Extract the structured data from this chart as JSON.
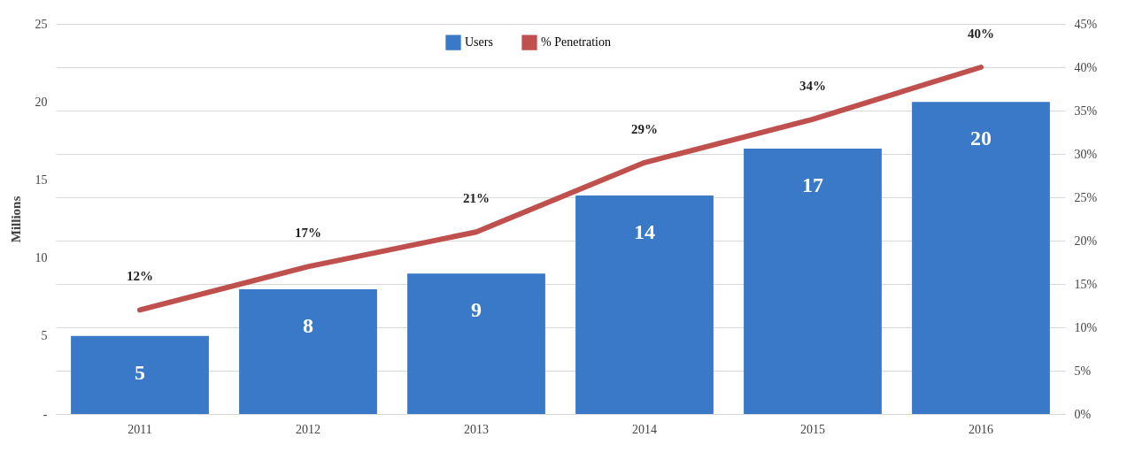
{
  "chart_data": {
    "type": "bar",
    "categories": [
      "2011",
      "2012",
      "2013",
      "2014",
      "2015",
      "2016"
    ],
    "series": [
      {
        "name": "Users",
        "color": "#3a78c8",
        "values": [
          5,
          8,
          9,
          14,
          17,
          20
        ],
        "value_labels": [
          "5",
          "8",
          "9",
          "14",
          "17",
          "20"
        ]
      },
      {
        "name": "% Penetration",
        "type": "line",
        "axis": "y2",
        "color": "#c0504d",
        "values": [
          12,
          17,
          21,
          29,
          34,
          40
        ],
        "value_labels": [
          "12%",
          "17%",
          "21%",
          "29%",
          "34%",
          "40%"
        ]
      }
    ],
    "ylabel": "Millions",
    "ylim": [
      0,
      25
    ],
    "yticks": [
      {
        "value": 0,
        "label": "-"
      },
      5,
      10,
      15,
      20,
      25
    ],
    "y2lim": [
      0,
      45
    ],
    "y2ticks": [
      {
        "value": 0,
        "label": "0%"
      },
      {
        "value": 5,
        "label": "5%"
      },
      {
        "value": 10,
        "label": "10%"
      },
      {
        "value": 15,
        "label": "15%"
      },
      {
        "value": 20,
        "label": "20%"
      },
      {
        "value": 25,
        "label": "25%"
      },
      {
        "value": 30,
        "label": "30%"
      },
      {
        "value": 35,
        "label": "35%"
      },
      {
        "value": 40,
        "label": "40%"
      },
      {
        "value": 45,
        "label": "45%"
      }
    ],
    "grid": "y",
    "legend": "top"
  }
}
